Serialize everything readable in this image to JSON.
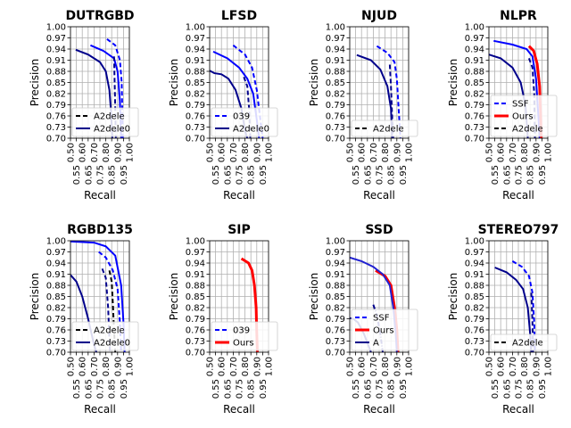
{
  "chart_data": [
    {
      "type": "line",
      "title": "DUTRGBD",
      "xlabel": "Recall",
      "ylabel": "Precision",
      "xlim": [
        0.5,
        1.0
      ],
      "ylim": [
        0.7,
        1.0
      ],
      "grid": true,
      "series": [
        {
          "color": "#00008b",
          "style": "solid",
          "points": [
            [
              0.545,
              0.938
            ],
            [
              0.65,
              0.925
            ],
            [
              0.75,
              0.905
            ],
            [
              0.8,
              0.88
            ],
            [
              0.83,
              0.83
            ],
            [
              0.845,
              0.77
            ],
            [
              0.855,
              0.7
            ]
          ]
        },
        {
          "color": "#0000ff",
          "style": "solid",
          "points": [
            [
              0.67,
              0.95
            ],
            [
              0.78,
              0.935
            ],
            [
              0.87,
              0.915
            ],
            [
              0.9,
              0.88
            ],
            [
              0.92,
              0.8
            ],
            [
              0.93,
              0.7
            ]
          ]
        },
        {
          "color": "#0000ff",
          "style": "dashed",
          "points": [
            [
              0.81,
              0.967
            ],
            [
              0.88,
              0.95
            ],
            [
              0.92,
              0.91
            ],
            [
              0.935,
              0.85
            ],
            [
              0.945,
              0.7
            ]
          ]
        },
        {
          "color": "#00008b",
          "style": "dashed",
          "points": [
            [
              0.87,
              0.92
            ],
            [
              0.875,
              0.85
            ],
            [
              0.88,
              0.78
            ],
            [
              0.885,
              0.7
            ]
          ]
        }
      ],
      "legend": [
        {
          "label": "A2dele",
          "color": "#000000",
          "style": "dashed"
        },
        {
          "label": "A2dele0",
          "color": "#00008b",
          "style": "solid"
        }
      ]
    },
    {
      "type": "line",
      "title": "LFSD",
      "xlabel": "Recall",
      "ylabel": "Precision",
      "xlim": [
        0.5,
        1.0
      ],
      "ylim": [
        0.7,
        1.0
      ],
      "grid": true,
      "series": [
        {
          "color": "#00008b",
          "style": "solid",
          "points": [
            [
              0.5,
              0.882
            ],
            [
              0.54,
              0.875
            ],
            [
              0.6,
              0.872
            ],
            [
              0.66,
              0.86
            ],
            [
              0.72,
              0.83
            ],
            [
              0.77,
              0.78
            ],
            [
              0.8,
              0.72
            ],
            [
              0.82,
              0.7
            ]
          ]
        },
        {
          "color": "#0000ff",
          "style": "solid",
          "points": [
            [
              0.53,
              0.933
            ],
            [
              0.65,
              0.915
            ],
            [
              0.75,
              0.89
            ],
            [
              0.82,
              0.86
            ],
            [
              0.87,
              0.82
            ],
            [
              0.9,
              0.75
            ],
            [
              0.92,
              0.7
            ]
          ]
        },
        {
          "color": "#0000ff",
          "style": "dashed",
          "points": [
            [
              0.7,
              0.95
            ],
            [
              0.8,
              0.925
            ],
            [
              0.86,
              0.89
            ],
            [
              0.9,
              0.83
            ],
            [
              0.93,
              0.75
            ],
            [
              0.95,
              0.7
            ]
          ]
        },
        {
          "color": "#00008b",
          "style": "dashed",
          "points": [
            [
              0.79,
              0.865
            ],
            [
              0.82,
              0.84
            ],
            [
              0.835,
              0.78
            ],
            [
              0.845,
              0.7
            ]
          ]
        }
      ],
      "legend": [
        {
          "label": "039",
          "color": "#0000ff",
          "style": "dashed"
        },
        {
          "label": "A2dele0",
          "color": "#00008b",
          "style": "solid"
        }
      ]
    },
    {
      "type": "line",
      "title": "NJUD",
      "xlabel": "Recall",
      "ylabel": "Precision",
      "xlim": [
        0.5,
        1.0
      ],
      "ylim": [
        0.7,
        1.0
      ],
      "grid": true,
      "series": [
        {
          "color": "#00008b",
          "style": "solid",
          "points": [
            [
              0.56,
              0.924
            ],
            [
              0.68,
              0.91
            ],
            [
              0.76,
              0.885
            ],
            [
              0.82,
              0.84
            ],
            [
              0.85,
              0.78
            ],
            [
              0.86,
              0.7
            ]
          ]
        },
        {
          "color": "#0000ff",
          "style": "dashed",
          "points": [
            [
              0.73,
              0.948
            ],
            [
              0.82,
              0.93
            ],
            [
              0.88,
              0.905
            ],
            [
              0.9,
              0.86
            ],
            [
              0.915,
              0.78
            ],
            [
              0.93,
              0.7
            ]
          ]
        },
        {
          "color": "#00008b",
          "style": "dashed",
          "points": [
            [
              0.84,
              0.898
            ],
            [
              0.85,
              0.84
            ],
            [
              0.86,
              0.76
            ],
            [
              0.87,
              0.7
            ]
          ]
        }
      ],
      "legend": [
        {
          "label": "A2dele",
          "color": "#000000",
          "style": "dashed"
        }
      ]
    },
    {
      "type": "line",
      "title": "NLPR",
      "xlabel": "Recall",
      "ylabel": "Precision",
      "xlim": [
        0.5,
        1.0
      ],
      "ylim": [
        0.7,
        1.0
      ],
      "grid": true,
      "series": [
        {
          "color": "#0000ff",
          "style": "solid",
          "points": [
            [
              0.54,
              0.962
            ],
            [
              0.7,
              0.952
            ],
            [
              0.82,
              0.94
            ],
            [
              0.87,
              0.92
            ],
            [
              0.9,
              0.86
            ],
            [
              0.92,
              0.76
            ],
            [
              0.93,
              0.7
            ]
          ]
        },
        {
          "color": "#00008b",
          "style": "solid",
          "points": [
            [
              0.5,
              0.925
            ],
            [
              0.6,
              0.915
            ],
            [
              0.7,
              0.89
            ],
            [
              0.77,
              0.85
            ],
            [
              0.81,
              0.79
            ],
            [
              0.83,
              0.7
            ]
          ]
        },
        {
          "color": "#00008b",
          "style": "dashed",
          "points": [
            [
              0.84,
              0.915
            ],
            [
              0.87,
              0.89
            ],
            [
              0.885,
              0.82
            ],
            [
              0.89,
              0.7
            ]
          ]
        },
        {
          "name": "Ours",
          "color": "#ff0000",
          "style": "solid",
          "points": [
            [
              0.84,
              0.948
            ],
            [
              0.88,
              0.935
            ],
            [
              0.91,
              0.9
            ],
            [
              0.93,
              0.84
            ],
            [
              0.94,
              0.75
            ],
            [
              0.945,
              0.7
            ]
          ]
        }
      ],
      "legend": [
        {
          "label": "SSF",
          "color": "#0000ff",
          "style": "dashed"
        },
        {
          "label": "Ours",
          "color": "#ff0000",
          "style": "solid"
        },
        {
          "label": "A2dele",
          "color": "#000000",
          "style": "dashed"
        }
      ]
    },
    {
      "type": "line",
      "title": "RGBD135",
      "xlabel": "Recall",
      "ylabel": "Precision",
      "xlim": [
        0.5,
        1.0
      ],
      "ylim": [
        0.7,
        1.0
      ],
      "grid": true,
      "series": [
        {
          "color": "#00008b",
          "style": "solid",
          "points": [
            [
              0.5,
              0.908
            ],
            [
              0.55,
              0.89
            ],
            [
              0.6,
              0.85
            ],
            [
              0.65,
              0.79
            ],
            [
              0.7,
              0.72
            ],
            [
              0.72,
              0.7
            ]
          ]
        },
        {
          "color": "#0000ff",
          "style": "solid",
          "points": [
            [
              0.5,
              0.998
            ],
            [
              0.7,
              0.995
            ],
            [
              0.8,
              0.985
            ],
            [
              0.88,
              0.96
            ],
            [
              0.93,
              0.88
            ],
            [
              0.95,
              0.78
            ],
            [
              0.96,
              0.7
            ]
          ]
        },
        {
          "color": "#0000ff",
          "style": "dashed",
          "points": [
            [
              0.74,
              0.97
            ],
            [
              0.8,
              0.955
            ],
            [
              0.86,
              0.92
            ],
            [
              0.9,
              0.87
            ],
            [
              0.92,
              0.78
            ],
            [
              0.93,
              0.7
            ]
          ]
        },
        {
          "color": "#000000",
          "style": "dashed",
          "points": [
            [
              0.83,
              0.92
            ],
            [
              0.85,
              0.89
            ],
            [
              0.86,
              0.83
            ],
            [
              0.87,
              0.76
            ],
            [
              0.88,
              0.7
            ]
          ]
        },
        {
          "color": "#00008b",
          "style": "dashed",
          "points": [
            [
              0.77,
              0.925
            ],
            [
              0.8,
              0.9
            ],
            [
              0.82,
              0.82
            ],
            [
              0.835,
              0.7
            ]
          ]
        }
      ],
      "legend": [
        {
          "label": "A2dele",
          "color": "#000000",
          "style": "dashed"
        },
        {
          "label": "A2dele0",
          "color": "#00008b",
          "style": "solid"
        }
      ]
    },
    {
      "type": "line",
      "title": "SIP",
      "xlabel": "Recall",
      "ylabel": "Precision",
      "xlim": [
        0.5,
        1.0
      ],
      "ylim": [
        0.7,
        1.0
      ],
      "grid": true,
      "series": [
        {
          "name": "Ours",
          "color": "#ff0000",
          "style": "solid",
          "points": [
            [
              0.77,
              0.952
            ],
            [
              0.83,
              0.94
            ],
            [
              0.86,
              0.92
            ],
            [
              0.88,
              0.88
            ],
            [
              0.895,
              0.82
            ],
            [
              0.9,
              0.75
            ],
            [
              0.905,
              0.7
            ]
          ]
        }
      ],
      "legend": [
        {
          "label": "039",
          "color": "#0000ff",
          "style": "dashed"
        },
        {
          "label": "Ours",
          "color": "#ff0000",
          "style": "solid"
        }
      ]
    },
    {
      "type": "line",
      "title": "SSD",
      "xlabel": "Recall",
      "ylabel": "Precision",
      "xlim": [
        0.5,
        1.0
      ],
      "ylim": [
        0.7,
        1.0
      ],
      "grid": true,
      "series": [
        {
          "name": "Ours",
          "color": "#ff0000",
          "style": "solid",
          "points": [
            [
              0.72,
              0.92
            ],
            [
              0.8,
              0.905
            ],
            [
              0.85,
              0.88
            ],
            [
              0.88,
              0.82
            ],
            [
              0.9,
              0.76
            ],
            [
              0.91,
              0.7
            ]
          ]
        },
        {
          "color": "#2020d0",
          "style": "solid",
          "points": [
            [
              0.5,
              0.955
            ],
            [
              0.6,
              0.945
            ],
            [
              0.7,
              0.93
            ],
            [
              0.78,
              0.91
            ],
            [
              0.84,
              0.88
            ],
            [
              0.87,
              0.82
            ],
            [
              0.89,
              0.75
            ],
            [
              0.9,
              0.7
            ]
          ]
        },
        {
          "color": "#00008b",
          "style": "solid",
          "points": [
            [
              0.5,
              0.792
            ],
            [
              0.53,
              0.79
            ],
            [
              0.57,
              0.78
            ],
            [
              0.62,
              0.75
            ],
            [
              0.68,
              0.7
            ]
          ]
        },
        {
          "color": "#00008b",
          "style": "dashdot",
          "points": [
            [
              0.7,
              0.828
            ],
            [
              0.73,
              0.8
            ],
            [
              0.76,
              0.75
            ],
            [
              0.78,
              0.7
            ]
          ]
        }
      ],
      "legend": [
        {
          "label": "SSF",
          "color": "#0000ff",
          "style": "dashed"
        },
        {
          "label": "Ours",
          "color": "#ff0000",
          "style": "solid"
        },
        {
          "label": "A",
          "color": "#00008b",
          "style": "solid"
        }
      ]
    },
    {
      "type": "line",
      "title": "STEREO797",
      "xlabel": "Recall",
      "ylabel": "Precision",
      "xlim": [
        0.5,
        1.0
      ],
      "ylim": [
        0.7,
        1.0
      ],
      "grid": true,
      "series": [
        {
          "color": "#00008b",
          "style": "solid",
          "points": [
            [
              0.55,
              0.928
            ],
            [
              0.65,
              0.915
            ],
            [
              0.73,
              0.895
            ],
            [
              0.79,
              0.87
            ],
            [
              0.83,
              0.82
            ],
            [
              0.85,
              0.75
            ],
            [
              0.86,
              0.7
            ]
          ]
        },
        {
          "color": "#0000ff",
          "style": "dashed",
          "points": [
            [
              0.7,
              0.945
            ],
            [
              0.78,
              0.93
            ],
            [
              0.84,
              0.905
            ],
            [
              0.87,
              0.86
            ],
            [
              0.885,
              0.78
            ],
            [
              0.89,
              0.7
            ]
          ]
        },
        {
          "color": "#00008b",
          "style": "dashed",
          "points": [
            [
              0.86,
              0.86
            ],
            [
              0.87,
              0.78
            ],
            [
              0.875,
              0.7
            ]
          ]
        }
      ],
      "legend": [
        {
          "label": "A2dele",
          "color": "#000000",
          "style": "dashed"
        }
      ]
    }
  ],
  "yticks": [
    "0.70",
    "0.73",
    "0.76",
    "0.79",
    "0.82",
    "0.85",
    "0.88",
    "0.91",
    "0.94",
    "0.97",
    "1.00"
  ],
  "xticks": [
    "0.50",
    "0.55",
    "0.60",
    "0.65",
    "0.70",
    "0.75",
    "0.80",
    "0.85",
    "0.90",
    "0.95",
    "1.00"
  ]
}
